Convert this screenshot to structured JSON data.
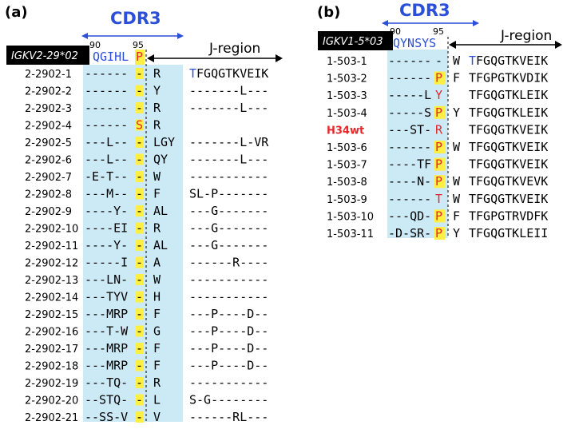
{
  "panel_a": {
    "label": "(a)",
    "cdr_title": "CDR3",
    "pos_left": "90",
    "pos_right": "95",
    "germline_label": "IGKV2-29*02",
    "germline_seq": "QGIHL",
    "germline_p": "P",
    "jregion_label": "J-region",
    "jregion_germline": "TFGQGTKVEIK",
    "rows": [
      {
        "name": "2-2902-1",
        "v": "------",
        "last": "-",
        "red": false,
        "n": "R",
        "j": "TFGQGTKVEIK"
      },
      {
        "name": "2-2902-2",
        "v": "------",
        "last": "-",
        "red": false,
        "n": "Y",
        "j": "-------L---"
      },
      {
        "name": "2-2902-3",
        "v": "------",
        "last": "-",
        "red": false,
        "n": "R",
        "j": "-------L---"
      },
      {
        "name": "2-2902-4",
        "v": "------",
        "last": "S",
        "red": true,
        "n": "R",
        "j": ""
      },
      {
        "name": "2-2902-5",
        "v": "---L--",
        "last": "-",
        "red": false,
        "n": "LGY",
        "j": "-------L-VR"
      },
      {
        "name": "2-2902-6",
        "v": "---L--",
        "last": "-",
        "red": false,
        "n": "QY",
        "j": "-------L---"
      },
      {
        "name": "2-2902-7",
        "v": "-E-T--",
        "last": "-",
        "red": false,
        "n": "W",
        "j": "-----------"
      },
      {
        "name": "2-2902-8",
        "v": "---M--",
        "last": "-",
        "red": false,
        "n": "F",
        "j": "SL-P-------"
      },
      {
        "name": "2-2902-9",
        "v": "----Y-",
        "last": "-",
        "red": false,
        "n": "AL",
        "j": "---G-------"
      },
      {
        "name": "2-2902-10",
        "v": "----EI",
        "last": "-",
        "red": false,
        "n": "R",
        "j": "---G-------"
      },
      {
        "name": "2-2902-11",
        "v": "----Y-",
        "last": "-",
        "red": false,
        "n": "AL",
        "j": "---G-------"
      },
      {
        "name": "2-2902-12",
        "v": "-----I",
        "last": "-",
        "red": false,
        "n": "A",
        "j": "------R----"
      },
      {
        "name": "2-2902-13",
        "v": "---LN-",
        "last": "-",
        "red": false,
        "n": "W",
        "j": "-----------"
      },
      {
        "name": "2-2902-14",
        "v": "---TYV",
        "last": "-",
        "red": false,
        "n": "H",
        "j": "-----------"
      },
      {
        "name": "2-2902-15",
        "v": "---MRP",
        "last": "-",
        "red": false,
        "n": "F",
        "j": "---P----D--"
      },
      {
        "name": "2-2902-16",
        "v": "---T-W",
        "last": "-",
        "red": false,
        "n": "G",
        "j": "---P----D--"
      },
      {
        "name": "2-2902-17",
        "v": "---MRP",
        "last": "-",
        "red": false,
        "n": "F",
        "j": "---P----D--"
      },
      {
        "name": "2-2902-18",
        "v": "---MRP",
        "last": "-",
        "red": false,
        "n": "F",
        "j": "---P----D--"
      },
      {
        "name": "2-2902-19",
        "v": "---TQ-",
        "last": "-",
        "red": false,
        "n": "R",
        "j": "-----------"
      },
      {
        "name": "2-2902-20",
        "v": "--STQ-",
        "last": "-",
        "red": false,
        "n": "L",
        "j": "S-G--------"
      },
      {
        "name": "2-2902-21",
        "v": "--SS-V",
        "last": "-",
        "red": false,
        "n": "V",
        "j": "------RL---"
      }
    ]
  },
  "panel_b": {
    "label": "(b)",
    "cdr_title": "CDR3",
    "pos_left": "90",
    "pos_right": "95",
    "germline_label": "IGKV1-5*03",
    "germline_seq": "QYNSYS",
    "jregion_label": "J-region",
    "rows": [
      {
        "name": "1-503-1",
        "v": "------",
        "last": "-",
        "mark": "none",
        "n": "W",
        "j": "TFGQGTKVEIK"
      },
      {
        "name": "1-503-2",
        "v": "------",
        "last": "P",
        "mark": "yellow",
        "n": "F",
        "j": "TFGPGTKVDIK"
      },
      {
        "name": "1-503-3",
        "v": "-----L",
        "last": "Y",
        "mark": "red",
        "n": "",
        "j": "TFGQGTKLEIK"
      },
      {
        "name": "1-503-4",
        "v": "-----S",
        "last": "P",
        "mark": "yellow",
        "n": "Y",
        "j": "TFGQGTKLEIK"
      },
      {
        "name": "H34wt",
        "v": "---ST-",
        "last": "R",
        "mark": "red",
        "n": "",
        "j": "TFGQGTKVEIK"
      },
      {
        "name": "1-503-6",
        "v": "------",
        "last": "P",
        "mark": "yellow",
        "n": "W",
        "j": "TFGQGTKVEIK"
      },
      {
        "name": "1-503-7",
        "v": "----TF",
        "last": "P",
        "mark": "yellow",
        "n": "",
        "j": "TFGQGTKVEIK"
      },
      {
        "name": "1-503-8",
        "v": "----N-",
        "last": "P",
        "mark": "yellow",
        "n": "W",
        "j": "TFGQGTKVEVK"
      },
      {
        "name": "1-503-9",
        "v": "------",
        "last": "T",
        "mark": "red",
        "n": "W",
        "j": "TFGQGTKVEIK"
      },
      {
        "name": "1-503-10",
        "v": "---QD-",
        "last": "P",
        "mark": "yellow",
        "n": "F",
        "j": "TFGPGTRVDFK"
      },
      {
        "name": "1-503-11",
        "v": "-D-SR-",
        "last": "P",
        "mark": "yellow",
        "n": "Y",
        "j": "TFGQGTKLEII"
      }
    ]
  },
  "colors": {
    "cdr_blue": "#2b4fd8",
    "shade": "#cce9f6",
    "highlight": "#ffee44",
    "red": "#e8262a",
    "black": "#000000"
  }
}
